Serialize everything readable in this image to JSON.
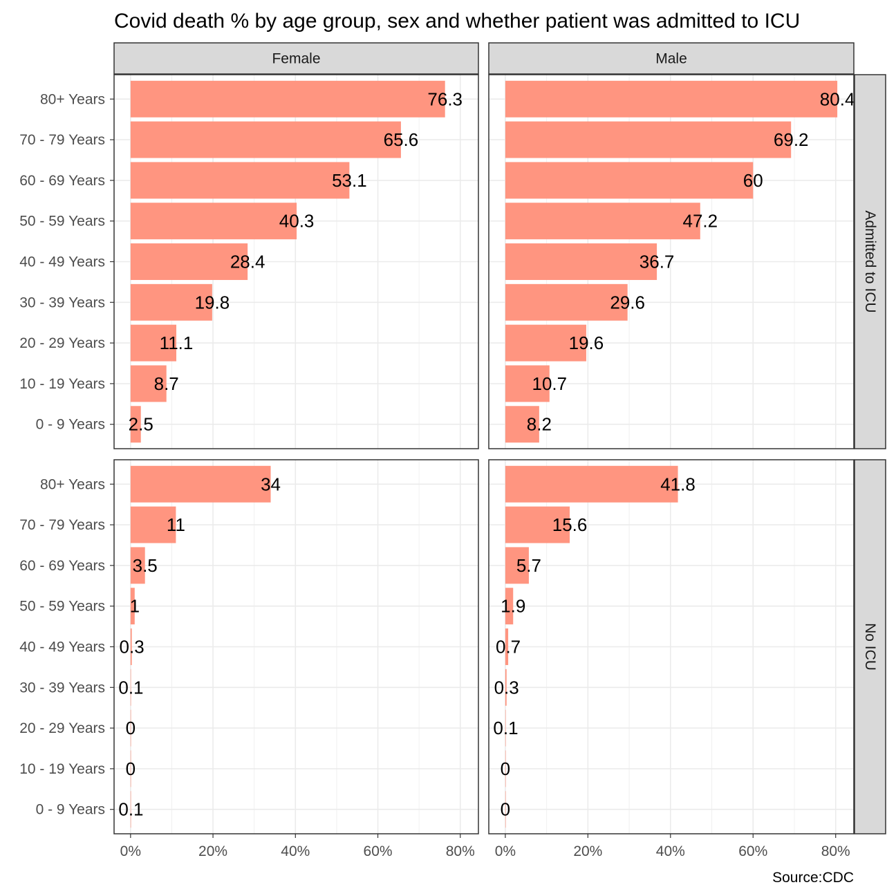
{
  "chart_data": {
    "type": "bar",
    "orientation": "horizontal",
    "title": "Covid death % by age group, sex and whether patient was admitted to ICU",
    "caption": "Source:CDC",
    "facet_columns": [
      "Female",
      "Male"
    ],
    "facet_rows": [
      "Admitted to ICU",
      "No ICU"
    ],
    "categories": [
      "0 - 9 Years",
      "10 - 19 Years",
      "20 - 29 Years",
      "30 - 39 Years",
      "40 - 49 Years",
      "50 - 59 Years",
      "60 - 69 Years",
      "70 - 79 Years",
      "80+ Years"
    ],
    "x_ticks": [
      0,
      20,
      40,
      60,
      80
    ],
    "x_tick_labels": [
      "0%",
      "20%",
      "40%",
      "60%",
      "80%"
    ],
    "xlim": [
      -4,
      84.4
    ],
    "grid": true,
    "bar_color": "#FF9580",
    "panels": [
      {
        "sex": "Female",
        "icu": "Admitted to ICU",
        "values": [
          2.5,
          8.7,
          11.1,
          19.8,
          28.4,
          40.3,
          53.1,
          65.6,
          76.3
        ],
        "labels": [
          "2.5",
          "8.7",
          "11.1",
          "19.8",
          "28.4",
          "40.3",
          "53.1",
          "65.6",
          "76.3"
        ]
      },
      {
        "sex": "Male",
        "icu": "Admitted to ICU",
        "values": [
          8.2,
          10.7,
          19.6,
          29.6,
          36.7,
          47.2,
          60,
          69.2,
          80.4
        ],
        "labels": [
          "8.2",
          "10.7",
          "19.6",
          "29.6",
          "36.7",
          "47.2",
          "60",
          "69.2",
          "80.4"
        ]
      },
      {
        "sex": "Female",
        "icu": "No ICU",
        "values": [
          0.1,
          0,
          0,
          0.1,
          0.3,
          1,
          3.5,
          11,
          34
        ],
        "labels": [
          "0.1",
          "0",
          "0",
          "0.1",
          "0.3",
          "1",
          "3.5",
          "11",
          "34"
        ]
      },
      {
        "sex": "Male",
        "icu": "No ICU",
        "values": [
          0,
          0,
          0.1,
          0.3,
          0.7,
          1.9,
          5.7,
          15.6,
          41.8
        ],
        "labels": [
          "0",
          "0",
          "0.1",
          "0.3",
          "0.7",
          "1.9",
          "5.7",
          "15.6",
          "41.8"
        ]
      }
    ]
  }
}
